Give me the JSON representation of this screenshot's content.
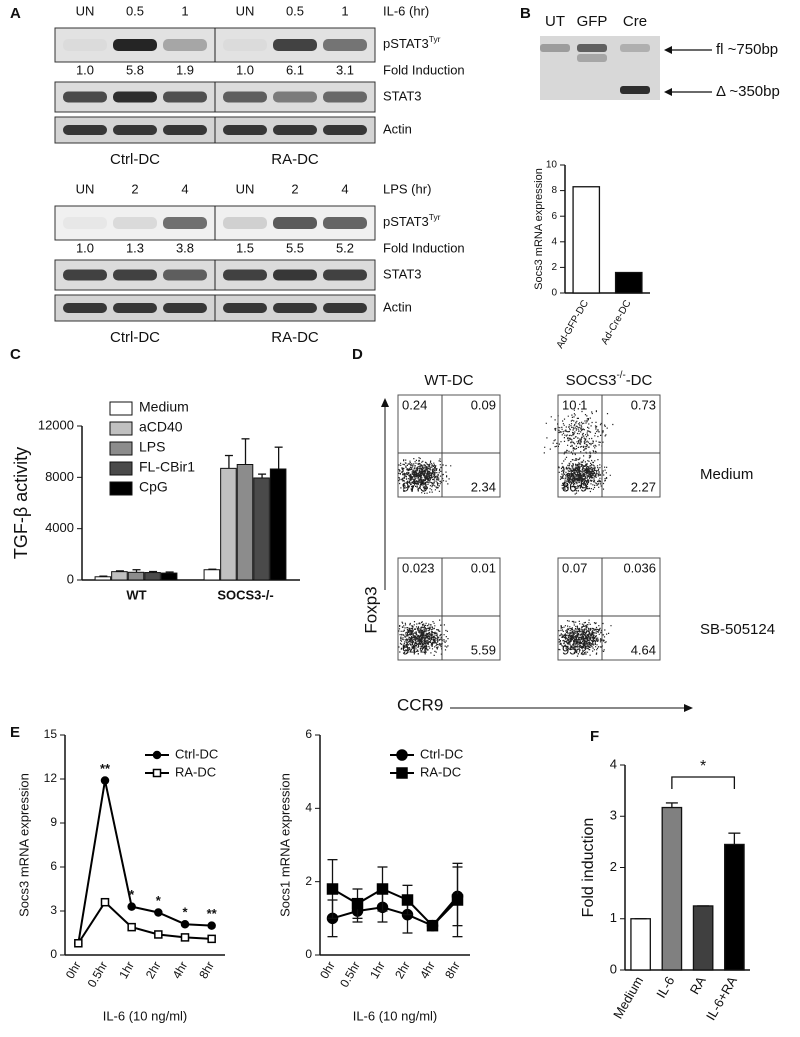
{
  "panel_labels": [
    "A",
    "B",
    "C",
    "D",
    "E",
    "F"
  ],
  "blots": [
    {
      "lanes": [
        "UN",
        "0.5",
        "1",
        "UN",
        "0.5",
        "1"
      ],
      "treatment": "IL-6 (hr)",
      "phospho": {
        "base": "pSTAT3",
        "sup": "Tyr"
      },
      "fold": [
        "1.0",
        "5.8",
        "1.9",
        "1.0",
        "6.1",
        "3.1"
      ],
      "fold_label": "Fold Induction",
      "total": "STAT3",
      "loading": "Actin",
      "groups": [
        "Ctrl-DC",
        "RA-DC"
      ]
    },
    {
      "lanes": [
        "UN",
        "2",
        "4",
        "UN",
        "2",
        "4"
      ],
      "treatment": "LPS (hr)",
      "phospho": {
        "base": "pSTAT3",
        "sup": "Tyr"
      },
      "fold": [
        "1.0",
        "1.3",
        "3.8",
        "1.5",
        "5.5",
        "5.2"
      ],
      "fold_label": "Fold Induction",
      "total": "STAT3",
      "loading": "Actin",
      "groups": [
        "Ctrl-DC",
        "RA-DC"
      ]
    }
  ],
  "gel": {
    "lanes": [
      "UT",
      "GFP",
      "Cre"
    ],
    "bands": [
      "fl ~750bp",
      "Δ ~350bp"
    ]
  },
  "flow": {
    "columns": [
      "WT-DC",
      {
        "base": "SOCS3",
        "sup": "-/-",
        "tail": "-DC"
      }
    ],
    "rows": [
      "Medium",
      "SB-505124"
    ],
    "y_label": "Foxp3",
    "x_label": "CCR9",
    "quadrants": [
      [
        "0.24",
        "0.09",
        "97.3",
        "2.34"
      ],
      [
        "10.1",
        "0.73",
        "86.9",
        "2.27"
      ],
      [
        "0.023",
        "0.01",
        "94.4",
        "5.59"
      ],
      [
        "0.07",
        "0.036",
        "95.2",
        "4.64"
      ]
    ]
  },
  "chart_data": [
    {
      "type": "bar",
      "y_label": "Socs3 mRNA expression",
      "categories": [
        "Ad-GFP-DC",
        "Ad-Cre-DC"
      ],
      "values": [
        8.3,
        1.6
      ],
      "colors": [
        "#ffffff",
        "#000000"
      ],
      "ylim": [
        0,
        10
      ],
      "yticks": [
        0,
        2,
        4,
        6,
        8,
        10
      ]
    },
    {
      "type": "bar",
      "y_label": "TGF-β activity",
      "categories": [
        "WT",
        "SOCS3-/-"
      ],
      "series": [
        {
          "name": "Medium",
          "color": "#ffffff",
          "values": [
            250,
            800
          ],
          "errors": [
            50,
            40
          ]
        },
        {
          "name": "aCD40",
          "color": "#c0c0c0",
          "values": [
            650,
            8700
          ],
          "errors": [
            60,
            1000
          ]
        },
        {
          "name": "LPS",
          "color": "#8c8c8c",
          "values": [
            600,
            9000
          ],
          "errors": [
            200,
            2000
          ]
        },
        {
          "name": "FL-CBir1",
          "color": "#4a4a4a",
          "values": [
            580,
            7950
          ],
          "errors": [
            80,
            300
          ]
        },
        {
          "name": "CpG",
          "color": "#000000",
          "values": [
            540,
            8650
          ],
          "errors": [
            80,
            1700
          ]
        }
      ],
      "ylim": [
        0,
        12000
      ],
      "yticks": [
        0,
        4000,
        8000,
        12000
      ],
      "legend": "upper left"
    },
    {
      "type": "line",
      "y_label": "Socs3 mRNA expression",
      "x_label": "IL-6 (10 ng/ml)",
      "categories": [
        "0hr",
        "0.5hr",
        "1hr",
        "2hr",
        "4hr",
        "8hr"
      ],
      "series": [
        {
          "name": "Ctrl-DC",
          "color": "#000000",
          "marker": "circle",
          "marker_fill": "#000000",
          "values": [
            0.8,
            11.9,
            3.3,
            2.9,
            2.1,
            2.0
          ]
        },
        {
          "name": "RA-DC",
          "color": "#000000",
          "marker": "square",
          "marker_fill": "#ffffff",
          "values": [
            0.8,
            3.6,
            1.9,
            1.4,
            1.2,
            1.1
          ]
        }
      ],
      "annotations": [
        null,
        "**",
        "*",
        "*",
        "*",
        "**"
      ],
      "ylim": [
        0,
        15
      ],
      "yticks": [
        0,
        3,
        6,
        9,
        12,
        15
      ],
      "legend": "upper right"
    },
    {
      "type": "line",
      "y_label": "Socs1 mRNA expression",
      "x_label": "IL-6 (10 ng/ml)",
      "categories": [
        "0hr",
        "0.5hr",
        "1hr",
        "2hr",
        "4hr",
        "8hr"
      ],
      "series": [
        {
          "name": "Ctrl-DC",
          "color": "#000000",
          "marker": "circle",
          "marker_fill": "#000000",
          "values": [
            1.0,
            1.2,
            1.3,
            1.1,
            0.8,
            1.6
          ],
          "errors": [
            0.5,
            0.3,
            0.4,
            0.5,
            0.1,
            0.8
          ]
        },
        {
          "name": "RA-DC",
          "color": "#000000",
          "marker": "square",
          "marker_fill": "#000000",
          "values": [
            1.8,
            1.4,
            1.8,
            1.5,
            0.8,
            1.5
          ],
          "errors": [
            0.8,
            0.4,
            0.6,
            0.4,
            0.1,
            1.0
          ]
        }
      ],
      "ylim": [
        0,
        6
      ],
      "yticks": [
        0,
        2,
        4,
        6
      ],
      "legend": "upper right"
    },
    {
      "type": "bar",
      "y_label": "Fold induction",
      "categories": [
        "Medium",
        "IL-6",
        "RA",
        "IL-6+RA"
      ],
      "values": [
        1,
        3.17,
        1.25,
        2.45
      ],
      "errors": [
        0,
        0.09,
        0,
        0.22
      ],
      "colors": [
        "#ffffff",
        "#808080",
        "#404040",
        "#000000"
      ],
      "ylim": [
        0,
        4
      ],
      "yticks": [
        0,
        1,
        2,
        3,
        4
      ],
      "annotation": "*"
    }
  ]
}
